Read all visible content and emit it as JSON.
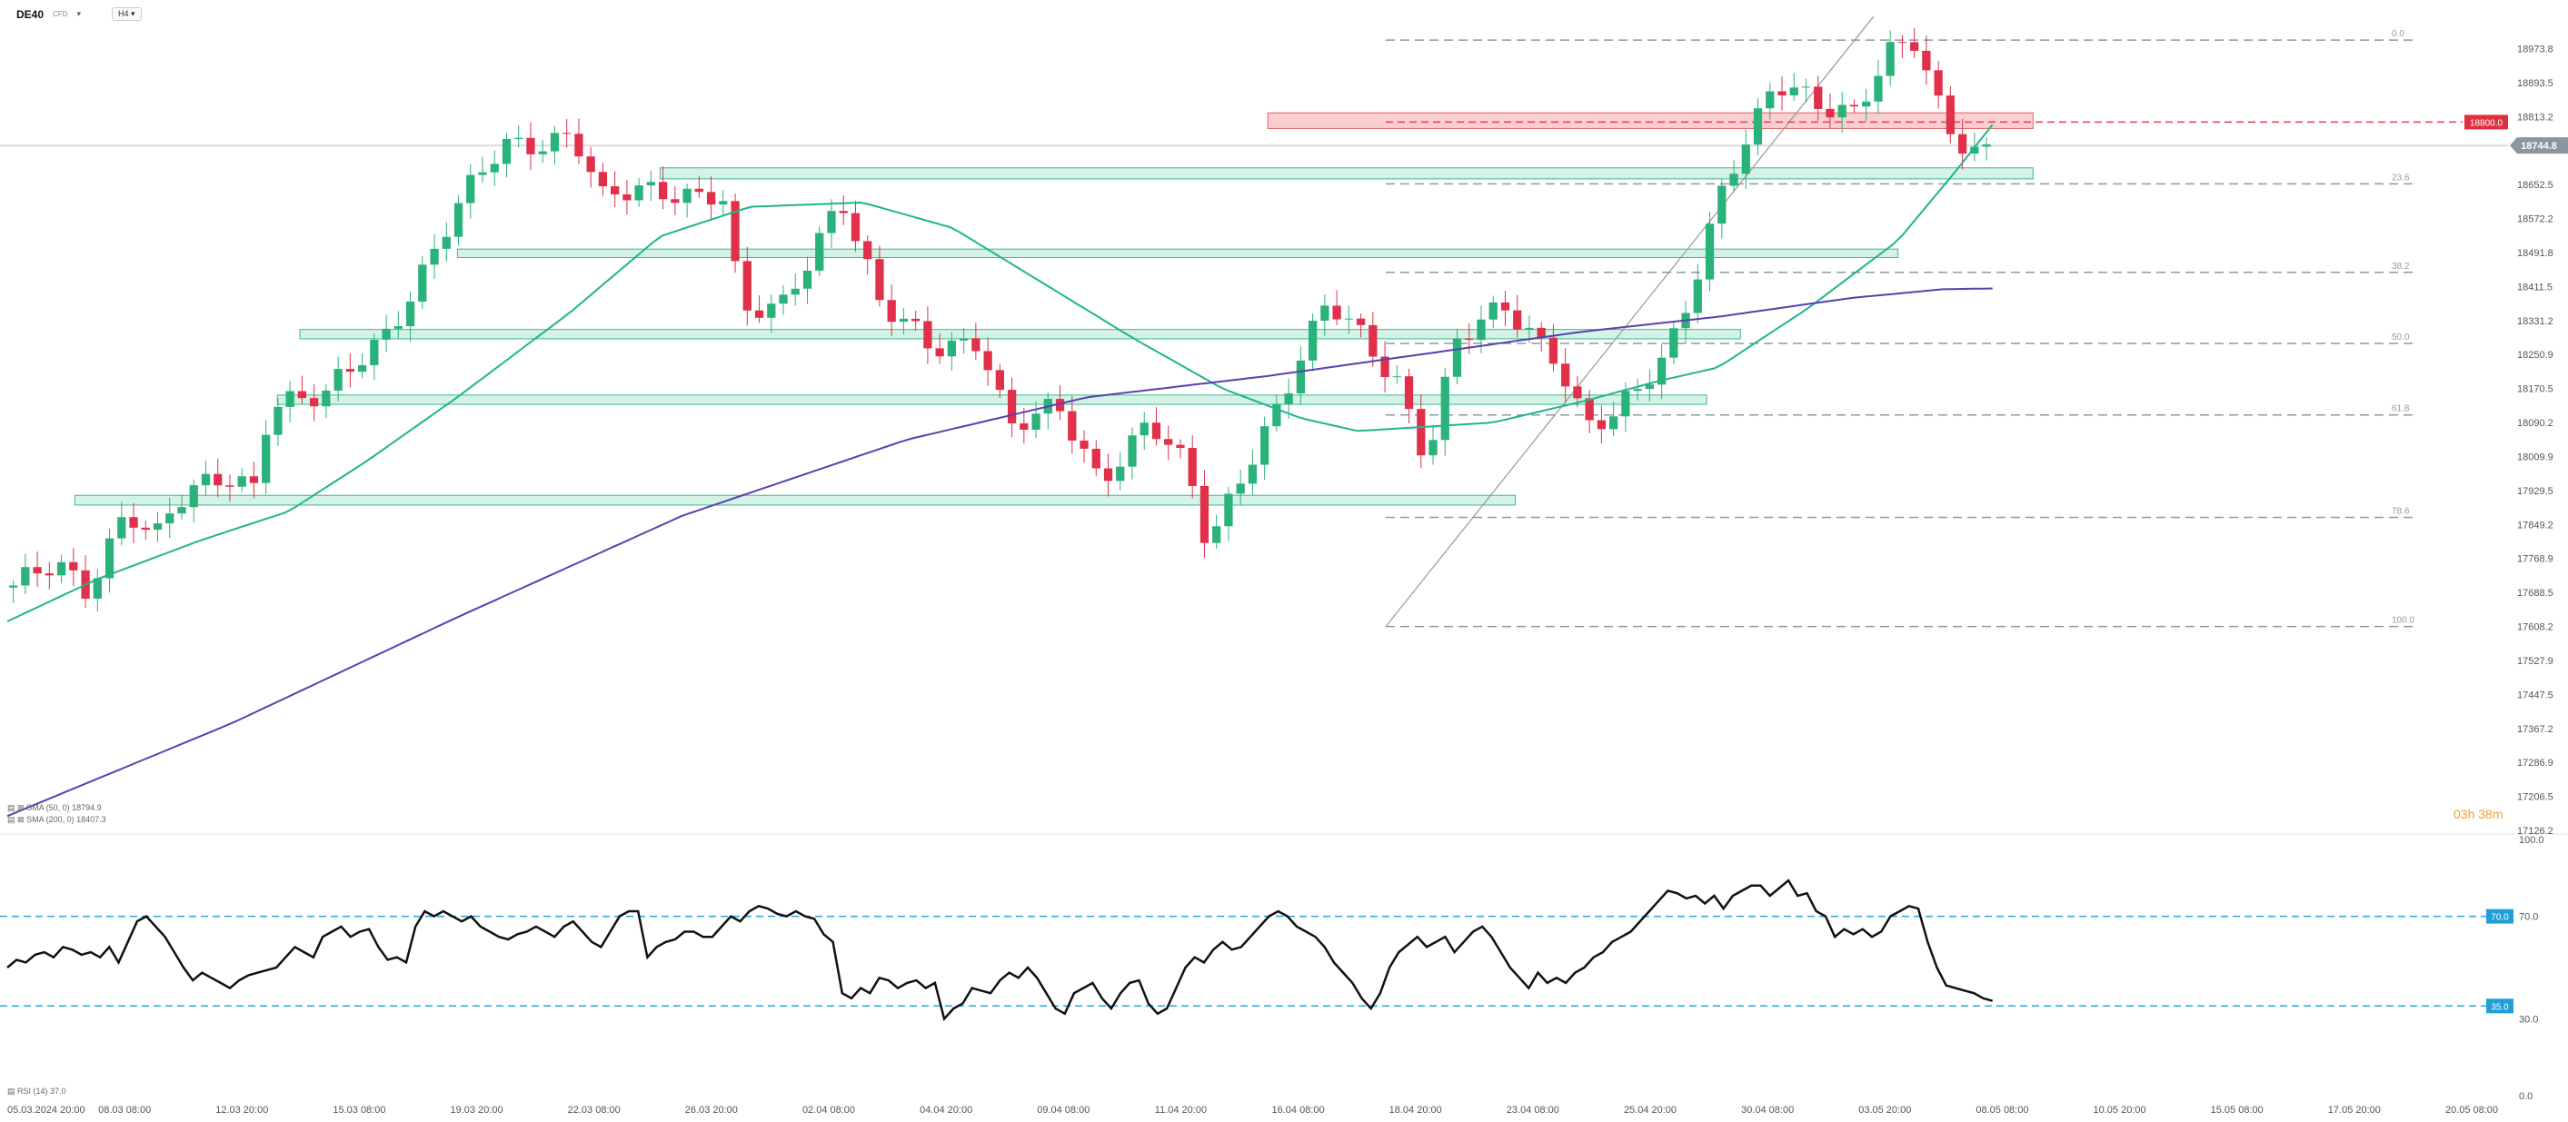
{
  "toolbar": {
    "symbol": "DE40",
    "instrument_type": "CFD",
    "timeframe": "H4",
    "caret_icon": "chevron-down-icon"
  },
  "indicators": {
    "sma50_label": "SMA (50, 0)",
    "sma50_value": "18794.9",
    "sma200_label": "SMA (200, 0)",
    "sma200_value": "18407.3",
    "rsi_label": "RSI (14)",
    "rsi_value": "37.0"
  },
  "countdown": "03h 38m",
  "chart_data": {
    "type": "candlestick",
    "timeframe": "H4",
    "x_tick_labels": [
      "05.03.2024  20:00",
      "08.03  08:00",
      "12.03  20:00",
      "15.03  08:00",
      "19.03  20:00",
      "22.03  08:00",
      "26.03  20:00",
      "02.04  08:00",
      "04.04  20:00",
      "09.04  08:00",
      "11.04  20:00",
      "16.04  08:00",
      "18.04  20:00",
      "23.04  08:00",
      "25.04  20:00",
      "30.04  08:00",
      "03.05  20:00",
      "08.05  08:00",
      "10.05  20:00",
      "15.05  08:00",
      "17.05  20:00",
      "20.05  08:00"
    ],
    "y_tick_labels": [
      "18973.8",
      "18893.5",
      "18813.2",
      "18652.5",
      "18572.2",
      "18491.8",
      "18411.5",
      "18331.2",
      "18250.9",
      "18170.5",
      "18090.2",
      "18009.9",
      "17929.5",
      "17849.2",
      "17768.9",
      "17688.5",
      "17608.2",
      "17527.9",
      "17447.5",
      "17367.2",
      "17286.9",
      "17206.5",
      "17126.2"
    ],
    "ylim": [
      17126.2,
      19050
    ],
    "last_price": "18744.8",
    "resistance_level": "18800.0",
    "fib_levels": [
      {
        "label": "0.0",
        "value": 18994
      },
      {
        "label": "23.6",
        "value": 18654
      },
      {
        "label": "38.2",
        "value": 18445
      },
      {
        "label": "50.0",
        "value": 18277
      },
      {
        "label": "61.8",
        "value": 18108
      },
      {
        "label": "78.6",
        "value": 17866
      },
      {
        "label": "100.0",
        "value": 17608
      }
    ],
    "zones": [
      {
        "kind": "resistance",
        "start_index": 0.56,
        "end_index": 0.9,
        "low": 18785,
        "high": 18822
      },
      {
        "kind": "support",
        "start_index": 0.29,
        "end_index": 0.9,
        "low": 18666,
        "high": 18692
      },
      {
        "kind": "support",
        "start_index": 0.2,
        "end_index": 0.84,
        "low": 18480,
        "high": 18500
      },
      {
        "kind": "support",
        "start_index": 0.13,
        "end_index": 0.77,
        "low": 18288,
        "high": 18310
      },
      {
        "kind": "support",
        "start_index": 0.12,
        "end_index": 0.755,
        "low": 18133,
        "high": 18155
      },
      {
        "kind": "support",
        "start_index": 0.03,
        "end_index": 0.67,
        "low": 17895,
        "high": 17918
      }
    ],
    "series": [
      {
        "name": "SMA (50, 0)",
        "anchors": [
          [
            0,
            17620
          ],
          [
            0.04,
            17720
          ],
          [
            0.085,
            17810
          ],
          [
            0.125,
            17880
          ],
          [
            0.16,
            18000
          ],
          [
            0.2,
            18150
          ],
          [
            0.25,
            18350
          ],
          [
            0.29,
            18530
          ],
          [
            0.33,
            18600
          ],
          [
            0.38,
            18610
          ],
          [
            0.42,
            18550
          ],
          [
            0.46,
            18420
          ],
          [
            0.5,
            18290
          ],
          [
            0.54,
            18170
          ],
          [
            0.575,
            18100
          ],
          [
            0.6,
            18070
          ],
          [
            0.63,
            18080
          ],
          [
            0.66,
            18090
          ],
          [
            0.7,
            18140
          ],
          [
            0.735,
            18190
          ],
          [
            0.76,
            18220
          ],
          [
            0.8,
            18360
          ],
          [
            0.84,
            18520
          ],
          [
            0.865,
            18680
          ],
          [
            0.882,
            18794
          ]
        ]
      },
      {
        "name": "SMA (200, 0)",
        "anchors": [
          [
            0,
            17160
          ],
          [
            0.1,
            17380
          ],
          [
            0.2,
            17630
          ],
          [
            0.3,
            17870
          ],
          [
            0.4,
            18050
          ],
          [
            0.48,
            18150
          ],
          [
            0.56,
            18200
          ],
          [
            0.64,
            18260
          ],
          [
            0.7,
            18305
          ],
          [
            0.76,
            18340
          ],
          [
            0.82,
            18385
          ],
          [
            0.86,
            18405
          ],
          [
            0.882,
            18407
          ]
        ]
      }
    ],
    "candles_summary": {
      "count": 165,
      "start_close": 17700,
      "end_close": 18745,
      "high": 18994,
      "low": 17608
    },
    "rsi": {
      "name": "RSI (14)",
      "levels": [
        70.0,
        35.0
      ],
      "y_tick_labels": [
        "100.0",
        "70.0",
        "30.0",
        "0.0"
      ],
      "ylim": [
        0,
        100
      ],
      "values": [
        50,
        53,
        52,
        55,
        56,
        54,
        58,
        57,
        55,
        56,
        54,
        58,
        52,
        60,
        68,
        70,
        66,
        62,
        56,
        50,
        45,
        48,
        46,
        44,
        42,
        45,
        47,
        48,
        49,
        50,
        54,
        58,
        56,
        54,
        62,
        64,
        66,
        62,
        64,
        65,
        58,
        53,
        54,
        52,
        66,
        72,
        70,
        72,
        70,
        68,
        70,
        66,
        64,
        62,
        61,
        63,
        64,
        66,
        64,
        62,
        66,
        68,
        64,
        60,
        58,
        64,
        70,
        72,
        72,
        54,
        58,
        60,
        61,
        64,
        64,
        62,
        62,
        66,
        70,
        68,
        72,
        74,
        73,
        71,
        70,
        72,
        70,
        69,
        63,
        60,
        40,
        38,
        42,
        40,
        46,
        45,
        42,
        44,
        45,
        42,
        44,
        30,
        34,
        36,
        42,
        41,
        40,
        45,
        48,
        46,
        50,
        46,
        40,
        34,
        32,
        40,
        42,
        44,
        38,
        34,
        40,
        44,
        45,
        36,
        32,
        34,
        42,
        50,
        54,
        52,
        57,
        60,
        57,
        58,
        62,
        66,
        70,
        72,
        70,
        66,
        64,
        62,
        58,
        52,
        48,
        44,
        38,
        34,
        40,
        50,
        56,
        59,
        62,
        58,
        60,
        62,
        56,
        60,
        64,
        66,
        62,
        56,
        50,
        46,
        42,
        48,
        44,
        46,
        44,
        48,
        50,
        54,
        56,
        60,
        62,
        64,
        68,
        72,
        76,
        80,
        79,
        77,
        78,
        75,
        78,
        73,
        78,
        80,
        82,
        82,
        78,
        81,
        84,
        78,
        79,
        72,
        70,
        62,
        65,
        63,
        65,
        62,
        64,
        70,
        72,
        74,
        73,
        60,
        50,
        43,
        42,
        41,
        40,
        38,
        37
      ]
    }
  }
}
